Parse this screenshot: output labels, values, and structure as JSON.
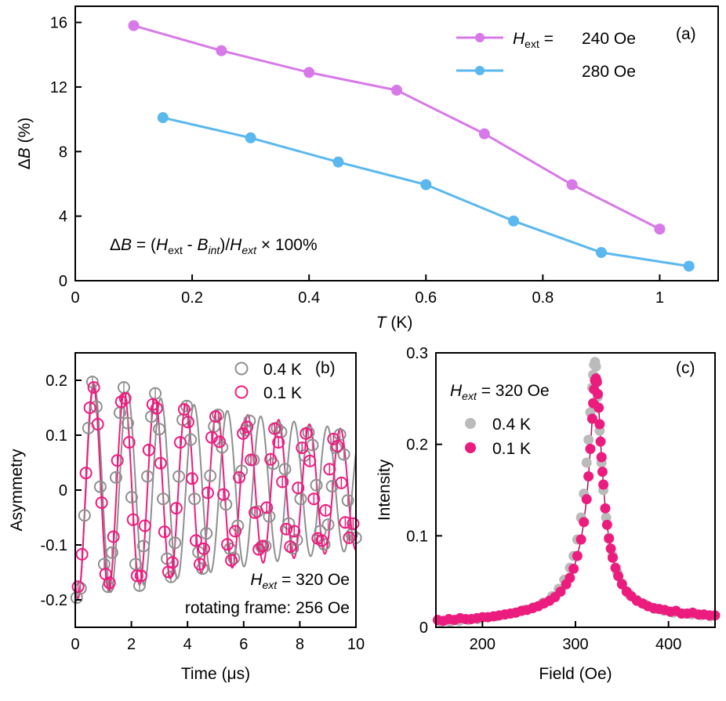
{
  "colors": {
    "violet": "#d77ae8",
    "blue": "#5ab8ee",
    "gray": "#8f8f8f",
    "lightgray": "#bbbbbb",
    "pink": "#ec1c7e"
  },
  "chart_data": [
    {
      "panel": "(a)",
      "type": "line",
      "xlim": [
        0,
        1.1
      ],
      "ylim": [
        0,
        17
      ],
      "xticks": [
        0,
        0.2,
        0.4,
        0.6,
        0.8,
        1
      ],
      "yticks": [
        0,
        4,
        8,
        12,
        16
      ],
      "xtick_labels": [
        "0",
        "0.2",
        "0.4",
        "0.6",
        "0.8",
        "1"
      ],
      "ytick_labels": [
        "0",
        "4",
        "8",
        "12",
        "16"
      ],
      "xlabel": {
        "var": "T",
        "unit": " (K)"
      },
      "ylabel": {
        "prefix": "Δ",
        "var": "B",
        "unit": " (%)"
      },
      "legend": {
        "var": "H",
        "sub": "ext",
        "eq": " = ",
        "placement": "top-right"
      },
      "annotation": {
        "a": "Δ",
        "b": "B",
        "c": " = (",
        "d": "H",
        "e": "ext",
        "f": " - ",
        "g": "B",
        "h": "int",
        "i": ")/",
        "j": "H",
        "k": "ext",
        "l": " × 100%"
      },
      "series": [
        {
          "name": "240 Oe",
          "color": "violet",
          "x": [
            0.1,
            0.25,
            0.4,
            0.55,
            0.7,
            0.85,
            1.0
          ],
          "y": [
            15.8,
            14.25,
            12.9,
            11.8,
            9.1,
            5.95,
            3.2
          ]
        },
        {
          "name": "280 Oe",
          "color": "blue",
          "x": [
            0.15,
            0.3,
            0.45,
            0.6,
            0.75,
            0.9,
            1.05
          ],
          "y": [
            10.1,
            8.85,
            7.35,
            5.95,
            3.7,
            1.75,
            0.9
          ]
        }
      ]
    },
    {
      "panel": "(b)",
      "type": "scatter",
      "xlim": [
        0,
        10
      ],
      "ylim": [
        -0.25,
        0.25
      ],
      "xticks": [
        0,
        2,
        4,
        6,
        8,
        10
      ],
      "yticks": [
        -0.2,
        -0.1,
        0,
        0.1,
        0.2
      ],
      "xtick_labels": [
        "0",
        "2",
        "4",
        "6",
        "8",
        "10"
      ],
      "ytick_labels": [
        "-0.2",
        "-0.1",
        "0",
        "0.1",
        "0.2"
      ],
      "xlabel": "Time (μs)",
      "ylabel": "Asymmetry",
      "legend_placement": "top-right",
      "annotation1": {
        "var": "H",
        "sub": "ext",
        "rest": " = 320 Oe"
      },
      "annotation2": "rotating frame: 256 Oe",
      "series": [
        {
          "name": "0.4 K",
          "color": "gray",
          "marker": "open-circle",
          "x": [
            0.05,
            0.19,
            0.33,
            0.47,
            0.61,
            0.75,
            0.89,
            1.03,
            1.17,
            1.31,
            1.45,
            1.59,
            1.73,
            1.87,
            2.01,
            2.15,
            2.29,
            2.43,
            2.57,
            2.71,
            2.85,
            2.99,
            3.13,
            3.27,
            3.41,
            3.55,
            3.69,
            3.83,
            3.97,
            4.11,
            4.25,
            4.39,
            4.53,
            4.67,
            4.81,
            4.95,
            5.09,
            5.23,
            5.37,
            5.51,
            5.65,
            5.79,
            5.93,
            6.07,
            6.21,
            6.35,
            6.49,
            6.63,
            6.77,
            6.91,
            7.05,
            7.19,
            7.33,
            7.47,
            7.61,
            7.75,
            7.89,
            8.03,
            8.17,
            8.31,
            8.45,
            8.59,
            8.73,
            8.87,
            9.01,
            9.15,
            9.29,
            9.43,
            9.57,
            9.71,
            9.85,
            9.99
          ],
          "y": [
            -0.196,
            -0.179,
            -0.046,
            0.113,
            0.197,
            0.152,
            0.006,
            -0.135,
            -0.176,
            -0.114,
            0.023,
            0.141,
            0.187,
            0.122,
            -0.013,
            -0.135,
            -0.174,
            -0.102,
            0.025,
            0.134,
            0.176,
            0.111,
            -0.016,
            -0.125,
            -0.158,
            -0.096,
            0.025,
            0.128,
            0.153,
            0.092,
            -0.016,
            -0.113,
            -0.143,
            -0.079,
            0.026,
            0.116,
            0.137,
            0.078,
            -0.026,
            -0.107,
            -0.124,
            -0.065,
            0.035,
            0.109,
            0.126,
            0.055,
            -0.039,
            -0.103,
            -0.102,
            -0.048,
            0.048,
            0.113,
            0.106,
            0.038,
            -0.061,
            -0.106,
            -0.091,
            -0.016,
            0.063,
            0.105,
            0.082,
            0.009,
            -0.075,
            -0.099,
            -0.063,
            0.007,
            0.077,
            0.101,
            0.065,
            -0.019,
            -0.081,
            -0.087
          ]
        },
        {
          "name": "0.1 K",
          "color": "pink",
          "marker": "open-circle",
          "x": [
            0.1,
            0.24,
            0.38,
            0.52,
            0.66,
            0.8,
            0.94,
            1.08,
            1.22,
            1.36,
            1.5,
            1.64,
            1.78,
            1.92,
            2.06,
            2.2,
            2.34,
            2.48,
            2.62,
            2.76,
            2.9,
            3.04,
            3.18,
            3.32,
            3.46,
            3.6,
            3.74,
            3.88,
            4.02,
            4.16,
            4.3,
            4.44,
            4.58,
            4.72,
            4.86,
            5.0,
            5.14,
            5.28,
            5.42,
            5.56,
            5.7,
            5.84,
            5.98,
            6.12,
            6.26,
            6.4,
            6.54,
            6.68,
            6.82,
            6.96,
            7.1,
            7.24,
            7.38,
            7.52,
            7.66,
            7.8,
            7.94,
            8.08,
            8.22,
            8.36,
            8.5,
            8.64,
            8.78,
            8.92,
            9.06,
            9.2,
            9.34,
            9.48,
            9.62,
            9.76,
            9.9
          ],
          "y": [
            -0.176,
            -0.117,
            0.031,
            0.15,
            0.187,
            0.12,
            -0.023,
            -0.153,
            -0.169,
            -0.085,
            0.054,
            0.161,
            0.167,
            0.087,
            -0.054,
            -0.156,
            -0.156,
            -0.065,
            0.073,
            0.156,
            0.149,
            0.049,
            -0.076,
            -0.149,
            -0.132,
            -0.033,
            0.087,
            0.147,
            0.124,
            0.021,
            -0.092,
            -0.135,
            -0.107,
            -0.005,
            0.096,
            0.134,
            0.088,
            -0.008,
            -0.099,
            -0.128,
            -0.075,
            0.023,
            0.103,
            0.115,
            0.055,
            -0.041,
            -0.108,
            -0.102,
            -0.032,
            0.056,
            0.112,
            0.087,
            0.015,
            -0.071,
            -0.103,
            -0.075,
            0.004,
            0.077,
            0.103,
            0.053,
            -0.016,
            -0.088,
            -0.092,
            -0.037,
            0.038,
            0.093,
            0.08,
            0.013,
            -0.059,
            -0.087,
            -0.061
          ]
        }
      ],
      "fit_lines": [
        {
          "name": "fit-0.4K",
          "color": "gray",
          "A0": 0.201,
          "decay": 0.061,
          "period": 1.187,
          "phase": 2.72
        },
        {
          "name": "fit-0.1K",
          "color": "pink",
          "A0": 0.198,
          "decay": 0.06,
          "period": 1.1,
          "phase": 2.6
        }
      ]
    },
    {
      "panel": "(c)",
      "type": "scatter",
      "xlim": [
        150,
        450
      ],
      "ylim": [
        0,
        0.3
      ],
      "xticks": [
        200,
        300,
        400
      ],
      "yticks": [
        0,
        0.1,
        0.2,
        0.3
      ],
      "xtick_labels": [
        "200",
        "300",
        "400"
      ],
      "ytick_labels": [
        "0",
        "0.1",
        "0.2",
        "0.3"
      ],
      "xlabel": "Field (Oe)",
      "ylabel": "Intensity",
      "legend_placement": "top-left",
      "annotation": {
        "var": "H",
        "sub": "ext",
        "rest": " = 320 Oe"
      },
      "series": [
        {
          "name": "0.4 K",
          "color": "lightgray",
          "marker": "filled-circle",
          "x": [
            155,
            165,
            175,
            185,
            195,
            205,
            215,
            225,
            235,
            245,
            255,
            265,
            275,
            282,
            288,
            294,
            298,
            302,
            306,
            309,
            312,
            314,
            316,
            318,
            319,
            320,
            321,
            322,
            323,
            324,
            326,
            328,
            330,
            333,
            336,
            340,
            345,
            350,
            358,
            366,
            375,
            385,
            395,
            405,
            415,
            425,
            435,
            445
          ],
          "y": [
            0.006,
            0.006,
            0.007,
            0.008,
            0.009,
            0.011,
            0.012,
            0.014,
            0.016,
            0.019,
            0.022,
            0.027,
            0.034,
            0.042,
            0.052,
            0.065,
            0.078,
            0.096,
            0.12,
            0.146,
            0.18,
            0.205,
            0.235,
            0.262,
            0.276,
            0.287,
            0.29,
            0.285,
            0.27,
            0.252,
            0.215,
            0.18,
            0.15,
            0.12,
            0.098,
            0.078,
            0.06,
            0.048,
            0.036,
            0.03,
            0.025,
            0.02,
            0.018,
            0.016,
            0.015,
            0.014,
            0.013,
            0.012
          ],
          "center": 320,
          "height": 0.29
        },
        {
          "name": "0.1 K",
          "color": "pink",
          "marker": "filled-circle",
          "x": [
            152,
            158,
            164,
            170,
            176,
            182,
            188,
            194,
            200,
            206,
            212,
            218,
            224,
            230,
            236,
            242,
            248,
            254,
            260,
            266,
            272,
            278,
            284,
            290,
            294,
            298,
            302,
            306,
            309,
            312,
            314,
            316,
            318,
            319,
            320,
            321,
            322,
            323,
            324,
            325,
            326,
            327,
            328,
            329,
            330,
            332,
            334,
            336,
            338,
            340,
            343,
            346,
            350,
            355,
            360,
            366,
            372,
            378,
            384,
            390,
            396,
            402,
            408,
            414,
            420,
            426,
            432,
            438,
            444,
            450
          ],
          "y": [
            0.008,
            0.007,
            0.009,
            0.008,
            0.01,
            0.009,
            0.009,
            0.01,
            0.011,
            0.011,
            0.012,
            0.013,
            0.014,
            0.015,
            0.016,
            0.018,
            0.019,
            0.021,
            0.023,
            0.026,
            0.029,
            0.033,
            0.039,
            0.047,
            0.054,
            0.064,
            0.078,
            0.096,
            0.115,
            0.14,
            0.165,
            0.195,
            0.228,
            0.245,
            0.26,
            0.27,
            0.272,
            0.268,
            0.255,
            0.24,
            0.222,
            0.203,
            0.186,
            0.17,
            0.156,
            0.13,
            0.112,
            0.097,
            0.086,
            0.076,
            0.065,
            0.056,
            0.047,
            0.039,
            0.034,
            0.029,
            0.026,
            0.023,
            0.021,
            0.02,
            0.019,
            0.017,
            0.018,
            0.015,
            0.015,
            0.016,
            0.014,
            0.014,
            0.013,
            0.013
          ],
          "center": 322,
          "height": 0.272
        }
      ],
      "fit_line": {
        "name": "fit-0.1K",
        "color": "#a01560",
        "center": 322,
        "height": 0.272
      }
    }
  ]
}
